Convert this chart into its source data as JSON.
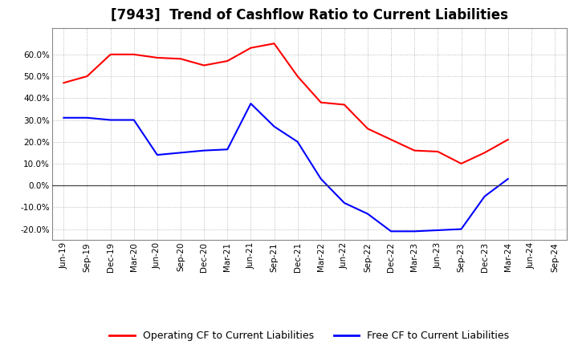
{
  "title": "[7943]  Trend of Cashflow Ratio to Current Liabilities",
  "x_labels": [
    "Jun-19",
    "Sep-19",
    "Dec-19",
    "Mar-20",
    "Jun-20",
    "Sep-20",
    "Dec-20",
    "Mar-21",
    "Jun-21",
    "Sep-21",
    "Dec-21",
    "Mar-22",
    "Jun-22",
    "Sep-22",
    "Dec-22",
    "Mar-23",
    "Jun-23",
    "Sep-23",
    "Dec-23",
    "Mar-24",
    "Jun-24",
    "Sep-24"
  ],
  "operating_cf": [
    47.0,
    50.0,
    60.0,
    60.0,
    58.5,
    58.0,
    55.0,
    57.0,
    63.0,
    65.0,
    50.0,
    38.0,
    37.0,
    26.0,
    21.0,
    16.0,
    15.5,
    10.0,
    15.0,
    21.0,
    null,
    null
  ],
  "free_cf": [
    31.0,
    31.0,
    30.0,
    30.0,
    14.0,
    15.0,
    16.0,
    16.5,
    37.5,
    27.0,
    20.0,
    3.0,
    -8.0,
    -13.0,
    -21.0,
    -21.0,
    -20.5,
    -20.0,
    -5.0,
    3.0,
    null,
    null
  ],
  "ylim": [
    -25.0,
    72.0
  ],
  "yticks": [
    -20.0,
    -10.0,
    0.0,
    10.0,
    20.0,
    30.0,
    40.0,
    50.0,
    60.0
  ],
  "operating_color": "#ff0000",
  "free_color": "#0000ff",
  "background_color": "#ffffff",
  "grid_color": "#aaaaaa",
  "zero_line_color": "#444444",
  "legend_op": "Operating CF to Current Liabilities",
  "legend_free": "Free CF to Current Liabilities",
  "title_fontsize": 12,
  "tick_fontsize": 7.5,
  "legend_fontsize": 9
}
